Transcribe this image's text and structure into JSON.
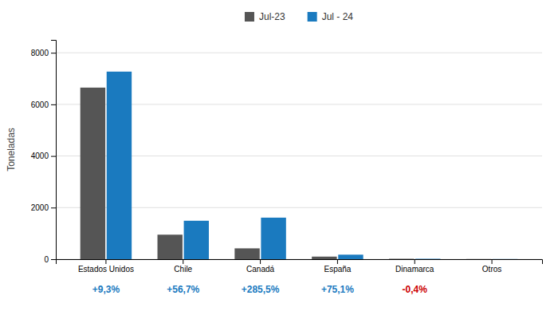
{
  "chart_data": {
    "type": "bar",
    "categories": [
      "Estados Unidos",
      "Chile",
      "Canadá",
      "España",
      "Dinamarca",
      "Otros"
    ],
    "series": [
      {
        "name": "Jul-23",
        "color": "#555555",
        "values": [
          6650,
          950,
          420,
          100,
          15,
          5
        ]
      },
      {
        "name": "Jul - 24",
        "color": "#1a7abf",
        "values": [
          7270,
          1490,
          1610,
          175,
          15,
          5
        ]
      }
    ],
    "ylabel": "Toneladas",
    "ylim": [
      0,
      8500
    ],
    "yticks": [
      0,
      2000,
      4000,
      6000,
      8000
    ],
    "grid": true,
    "legend": "top",
    "annotations": [
      {
        "text": "+9,3%",
        "category": "Estados Unidos",
        "color": "#1a7abf"
      },
      {
        "text": "+56,7%",
        "category": "Chile",
        "color": "#1a7abf"
      },
      {
        "text": "+285,5%",
        "category": "Canadá",
        "color": "#1a7abf"
      },
      {
        "text": "+75,1%",
        "category": "España",
        "color": "#1a7abf"
      },
      {
        "text": "-0,4%",
        "category": "Dinamarca",
        "color": "#cc0000"
      }
    ]
  }
}
